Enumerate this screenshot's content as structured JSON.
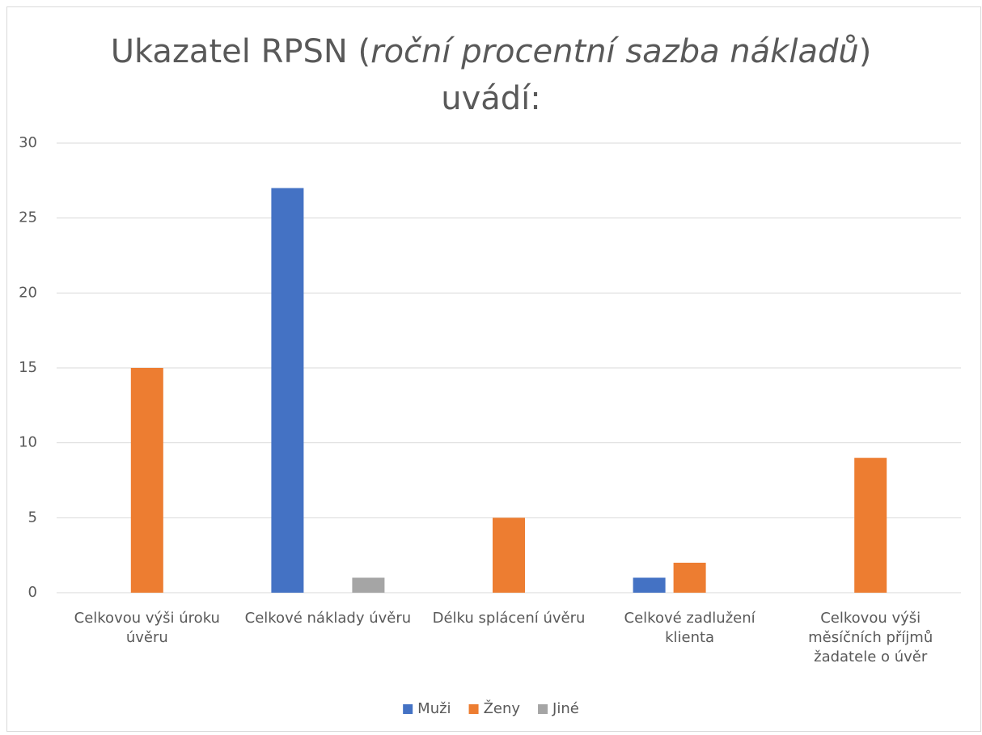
{
  "chart_data": {
    "type": "bar",
    "title": [
      "Ukazatel RPSN (",
      "roční procentní sazba nákladů",
      ")",
      "uvádí:"
    ],
    "categories": [
      "Celkovou výši úroku úvěru",
      "Celkové náklady úvěru",
      "Délku splácení úvěru",
      "Celkové zadlužení klienta",
      "Celkovou výši měsíčních příjmů žadatele o úvěr"
    ],
    "series": [
      {
        "name": "Muži",
        "color": "#4472c4",
        "values": [
          0,
          27,
          0,
          1,
          0
        ]
      },
      {
        "name": "Ženy",
        "color": "#ed7d31",
        "values": [
          15,
          0,
          5,
          2,
          9
        ]
      },
      {
        "name": "Jiné",
        "color": "#a5a5a5",
        "values": [
          0,
          1,
          0,
          0,
          0
        ]
      }
    ],
    "ylim": [
      0,
      30
    ],
    "yticks": [
      0,
      5,
      10,
      15,
      20,
      25,
      30
    ],
    "grid": true,
    "legend": "bottom"
  }
}
